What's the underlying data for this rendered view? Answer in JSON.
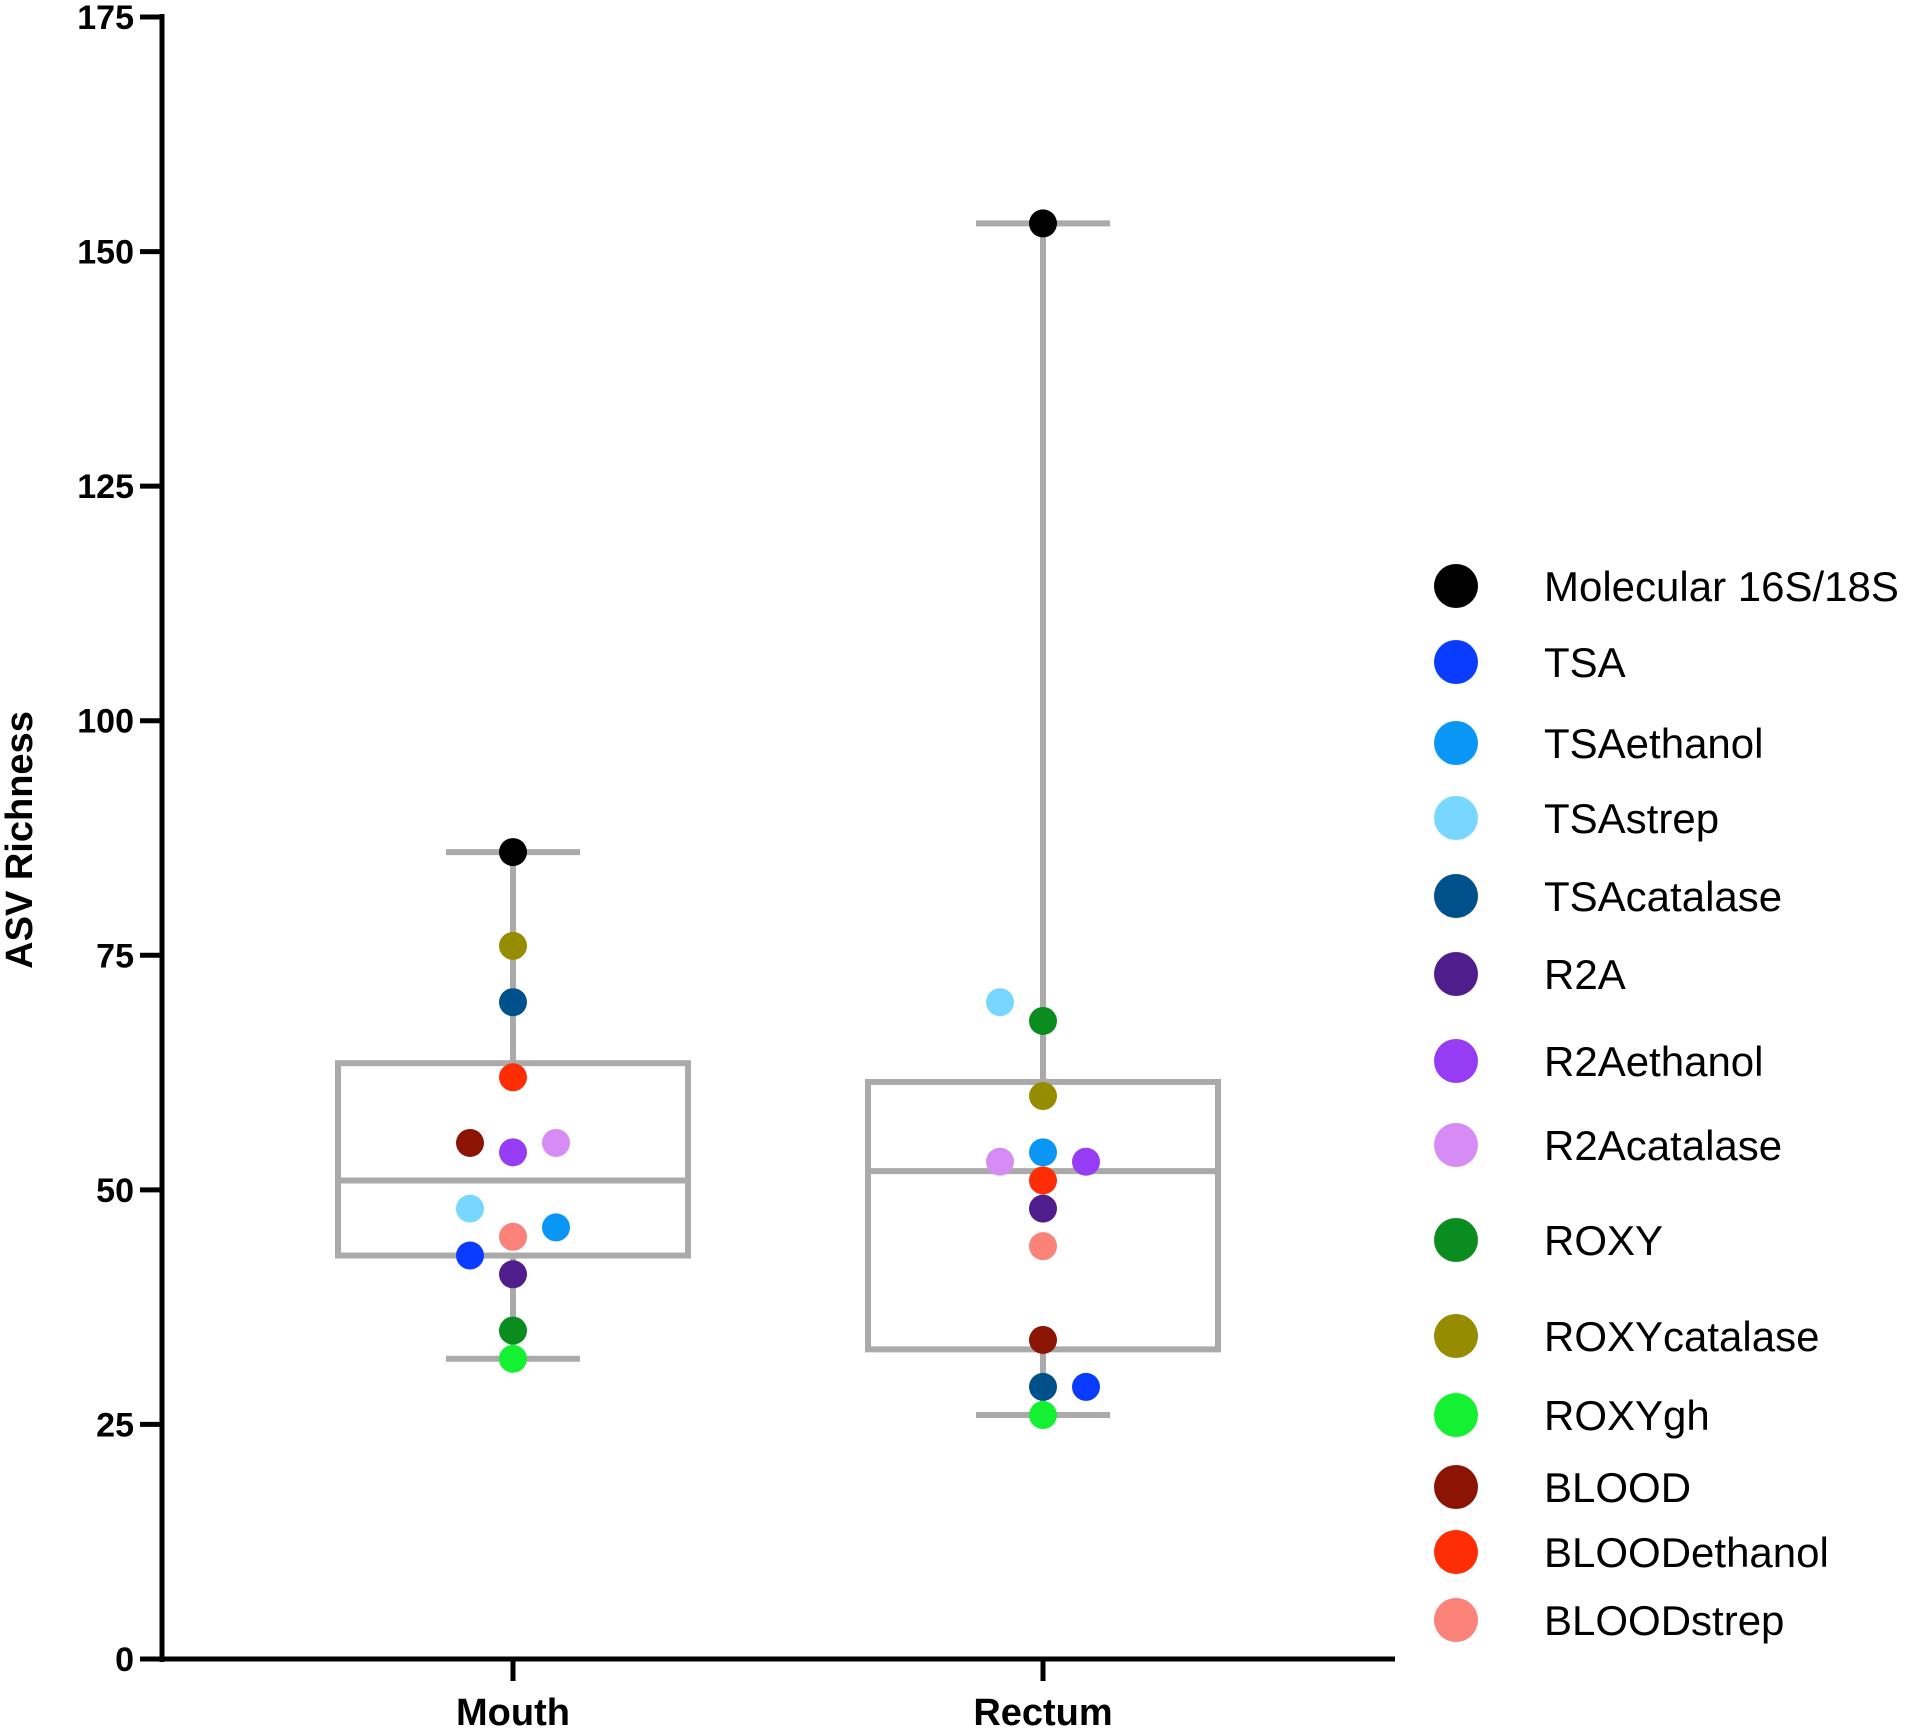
{
  "chart_data": {
    "type": "box-scatter",
    "title": "",
    "xlabel": "",
    "ylabel": "ASV Richness",
    "ylim": [
      0,
      175
    ],
    "yticks": [
      0,
      25,
      50,
      75,
      100,
      125,
      150,
      175
    ],
    "categories": [
      "Mouth",
      "Rectum"
    ],
    "boxes": [
      {
        "category": "Mouth",
        "min": 32,
        "q1": 43,
        "median": 51,
        "q3": 63.5,
        "max": 86
      },
      {
        "category": "Rectum",
        "min": 26,
        "q1": 33,
        "median": 52,
        "q3": 61.5,
        "max": 153
      }
    ],
    "series": [
      {
        "name": "Molecular 16S/18S",
        "color": "#000000",
        "values": [
          86,
          153
        ],
        "jitter": [
          0,
          0
        ]
      },
      {
        "name": "TSA",
        "color": "#0a3cff",
        "values": [
          43,
          29
        ],
        "jitter": [
          -1,
          1
        ]
      },
      {
        "name": "TSAethanol",
        "color": "#0a96f5",
        "values": [
          46,
          54
        ],
        "jitter": [
          1,
          0
        ]
      },
      {
        "name": "TSAstrep",
        "color": "#78d7ff",
        "values": [
          48,
          70
        ],
        "jitter": [
          -1,
          -1
        ]
      },
      {
        "name": "TSAcatalase",
        "color": "#00508c",
        "values": [
          70,
          29
        ],
        "jitter": [
          0,
          0
        ]
      },
      {
        "name": "R2A",
        "color": "#501e8c",
        "values": [
          41,
          48
        ],
        "jitter": [
          0,
          0
        ]
      },
      {
        "name": "R2Aethanol",
        "color": "#963cf5",
        "values": [
          54,
          53
        ],
        "jitter": [
          0,
          1
        ]
      },
      {
        "name": "R2Acatalase",
        "color": "#d78cf5",
        "values": [
          55,
          53
        ],
        "jitter": [
          1,
          -1
        ]
      },
      {
        "name": "ROXY",
        "color": "#0a8c1e",
        "values": [
          35,
          68
        ],
        "jitter": [
          0,
          0
        ]
      },
      {
        "name": "ROXYcatalase",
        "color": "#968c00",
        "values": [
          76,
          60
        ],
        "jitter": [
          0,
          0
        ]
      },
      {
        "name": "ROXYgh",
        "color": "#14f032",
        "values": [
          32,
          26
        ],
        "jitter": [
          0,
          0
        ]
      },
      {
        "name": "BLOOD",
        "color": "#8c1405",
        "values": [
          55,
          34
        ],
        "jitter": [
          -1,
          0
        ]
      },
      {
        "name": "BLOODethanol",
        "color": "#ff2d05",
        "values": [
          62,
          51
        ],
        "jitter": [
          0,
          0
        ]
      },
      {
        "name": "BLOODstrep",
        "color": "#fa8278",
        "values": [
          45,
          44
        ],
        "jitter": [
          0,
          0
        ]
      }
    ],
    "legend_position": "right"
  }
}
